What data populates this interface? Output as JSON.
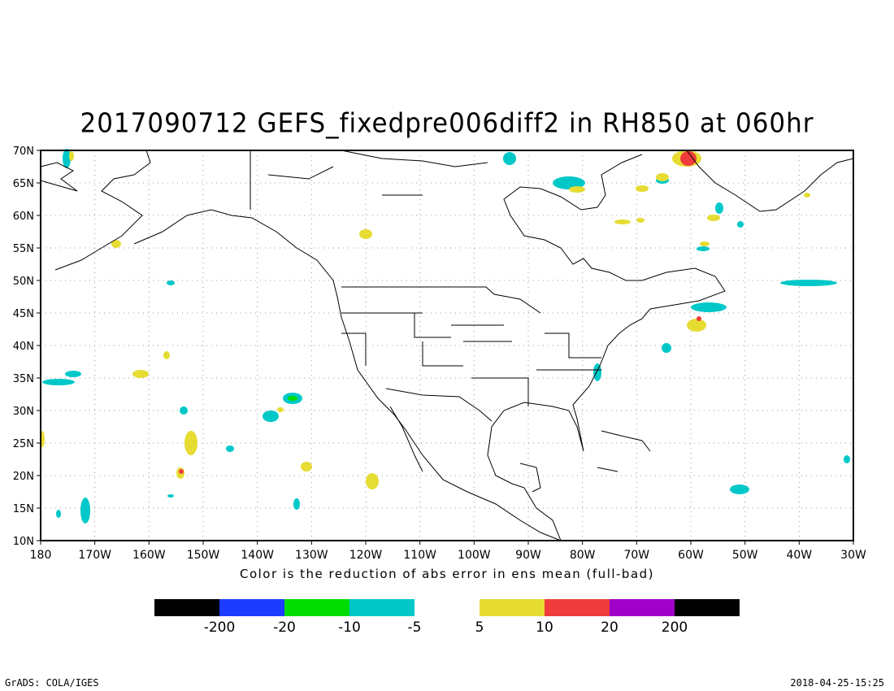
{
  "title": "2017090712 GEFS_fixedpre006diff2 in RH850 at 060hr",
  "xlabel": "Color is the reduction of abs error in ens mean (full-bad)",
  "lat_ticks": [
    "10N",
    "15N",
    "20N",
    "25N",
    "30N",
    "35N",
    "40N",
    "45N",
    "50N",
    "55N",
    "60N",
    "65N",
    "70N"
  ],
  "lon_ticks": [
    "180",
    "170W",
    "160W",
    "150W",
    "140W",
    "130W",
    "120W",
    "110W",
    "100W",
    "90W",
    "80W",
    "70W",
    "60W",
    "50W",
    "40W",
    "30W"
  ],
  "colorbar": {
    "negative": {
      "colors": [
        "#000000",
        "#1e3cff",
        "#00dc00",
        "#00c8c8"
      ],
      "labels": [
        "-200",
        "-20",
        "-10",
        "-5"
      ]
    },
    "positive": {
      "colors": [
        "#e6dc32",
        "#f03c3c",
        "#a000c8",
        "#000000"
      ],
      "labels": [
        "5",
        "10",
        "20",
        "200"
      ]
    }
  },
  "footer": {
    "left": "GrADS: COLA/IGES",
    "right": "2018-04-25-15:25"
  }
}
